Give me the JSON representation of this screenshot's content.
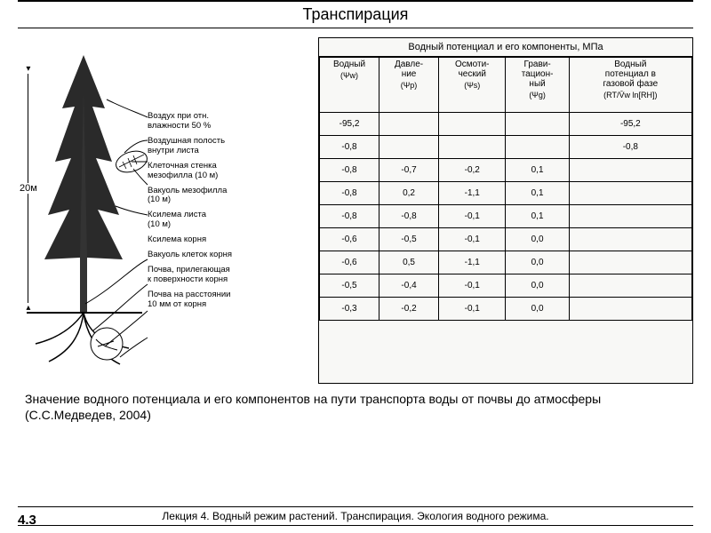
{
  "title": "Транспирация",
  "height_label": "20м",
  "tree_labels": [
    "Воздух при отн.\nвлажности 50 %",
    "Воздушная полость\nвнутри листа",
    "Клеточная стенка\nмезофилла (10 м)",
    "Вакуоль мезофилла\n(10 м)",
    "Ксилема листа\n(10 м)",
    "Ксилема корня",
    "Вакуоль клеток корня",
    "Почва, прилегающая\nк поверхности корня",
    "Почва на расстоянии\n10 мм от корня"
  ],
  "table": {
    "header": "Водный потенциал и его компоненты, МПа",
    "columns": [
      {
        "name": "Водный",
        "sub": "(Ψw)"
      },
      {
        "name": "Давле-\nние",
        "sub": "(Ψp)"
      },
      {
        "name": "Осмоти-\nческий",
        "sub": "(Ψs)"
      },
      {
        "name": "Грави-\nтацион-\nный",
        "sub": "(Ψg)"
      },
      {
        "name": "Водный\nпотенциал в\nгазовой фазе",
        "sub": "(RT/V̄w ln[RH])"
      }
    ],
    "rows": [
      [
        "-95,2",
        "",
        "",
        "",
        "-95,2"
      ],
      [
        "-0,8",
        "",
        "",
        "",
        "-0,8"
      ],
      [
        "-0,8",
        "-0,7",
        "-0,2",
        "0,1",
        ""
      ],
      [
        "-0,8",
        "0,2",
        "-1,1",
        "0,1",
        ""
      ],
      [
        "-0,8",
        "-0,8",
        "-0,1",
        "0,1",
        ""
      ],
      [
        "-0,6",
        "-0,5",
        "-0,1",
        "0,0",
        ""
      ],
      [
        "-0,6",
        "0,5",
        "-1,1",
        "0,0",
        ""
      ],
      [
        "-0,5",
        "-0,4",
        "-0,1",
        "0,0",
        ""
      ],
      [
        "-0,3",
        "-0,2",
        "-0,1",
        "0,0",
        ""
      ]
    ],
    "col_widths": [
      "16%",
      "16%",
      "18%",
      "17%",
      "33%"
    ]
  },
  "caption": "Значение водного потенциала и его компонентов на пути транспорта воды от почвы до атмосферы (С.С.Медведев, 2004)",
  "footer": "Лекция 4. Водный режим растений. Транспирация. Экология водного режима.",
  "page": "4.3",
  "colors": {
    "line": "#000",
    "bg": "#fff"
  }
}
